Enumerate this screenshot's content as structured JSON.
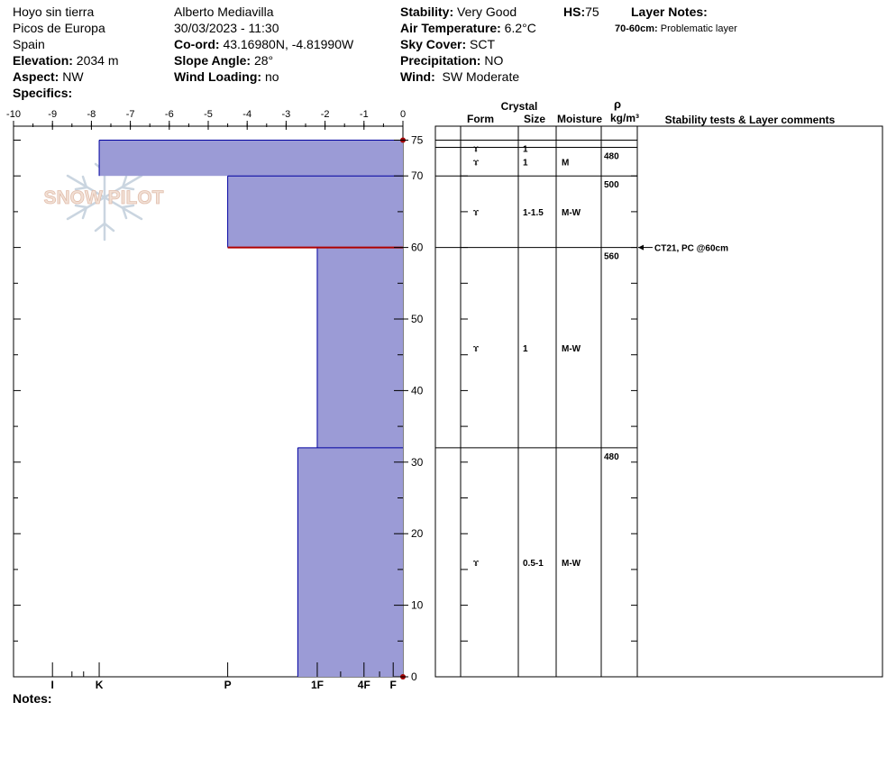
{
  "header": {
    "location": "Hoyo sin tierra",
    "range": "Picos de Europa",
    "country": "Spain",
    "elevation_label": "Elevation:",
    "elevation": "2034 m",
    "aspect_label": "Aspect:",
    "aspect": "NW",
    "specifics_label": "Specifics:",
    "observer": "Alberto Mediavilla",
    "datetime": "30/03/2023 - 11:30",
    "coord_label": "Co-ord:",
    "coord": "43.16980N, -4.81990W",
    "slope_label": "Slope Angle:",
    "slope": "28°",
    "wind_loading_label": "Wind Loading:",
    "wind_loading": "no",
    "stability_label": "Stability:",
    "stability": "Very Good",
    "hs_label": "HS:",
    "hs": "75",
    "air_temp_label": "Air Temperature:",
    "air_temp": "6.2°C",
    "sky_label": "Sky Cover:",
    "sky": "SCT",
    "precip_label": "Precipitation:",
    "precip": "NO",
    "wind_label": "Wind:",
    "wind": "SW Moderate",
    "layer_notes_label": "Layer Notes:",
    "layer_note_range": "70-60cm:",
    "layer_note_text": "Problematic layer",
    "notes_label": "Notes:"
  },
  "watermark": {
    "text": "SNOW PILOT"
  },
  "table_headers": {
    "crystal": "Crystal",
    "form": "Form",
    "size": "Size",
    "moisture": "Moisture",
    "rho": "ρ",
    "density_unit": "kg/m³",
    "comments": "Stability tests & Layer comments"
  },
  "chart_data": {
    "type": "snow-profile",
    "hardness_axis_ticks": [
      "-10",
      "-9",
      "-8",
      "-7",
      "-6",
      "-5",
      "-4",
      "-3",
      "-2",
      "-1",
      "0"
    ],
    "hardness_labels": [
      {
        "label": "I",
        "value": -9.0
      },
      {
        "label": "K",
        "value": -7.8
      },
      {
        "label": "P",
        "value": -4.5
      },
      {
        "label": "1F",
        "value": -2.2
      },
      {
        "label": "4F",
        "value": -1.0
      },
      {
        "label": "F",
        "value": -0.25
      }
    ],
    "height_ticks": [
      "0",
      "10",
      "20",
      "30",
      "40",
      "50",
      "60",
      "70",
      "75"
    ],
    "ylim": [
      0,
      75
    ],
    "xlim": [
      -10,
      0
    ],
    "layers": [
      {
        "top": 75,
        "bottom": 70,
        "hardness": -7.8
      },
      {
        "top": 70,
        "bottom": 60,
        "hardness": -4.5
      },
      {
        "top": 60,
        "bottom": 32,
        "hardness": -2.2
      },
      {
        "top": 32,
        "bottom": 0,
        "hardness": -2.7
      }
    ],
    "weak_interface": 60,
    "table_rows": [
      {
        "top": 75,
        "bottom": 74,
        "form": "ɤ",
        "size": "1",
        "moisture": "",
        "density": ""
      },
      {
        "top": 74,
        "bottom": 70,
        "form": "ɤ",
        "size": "1",
        "moisture": "M",
        "density": "480"
      },
      {
        "top": 70,
        "bottom": 60,
        "form": "ɤ",
        "size": "1-1.5",
        "moisture": "M-W",
        "density": "500"
      },
      {
        "top": 60,
        "bottom": 32,
        "form": "ɤ",
        "size": "1",
        "moisture": "M-W",
        "density": "560"
      },
      {
        "top": 32,
        "bottom": 0,
        "form": "ɤ",
        "size": "0.5-1",
        "moisture": "M-W",
        "density": "480"
      }
    ],
    "stability_tests": [
      {
        "depth": 60,
        "text": "CT21, PC @60cm"
      }
    ]
  }
}
